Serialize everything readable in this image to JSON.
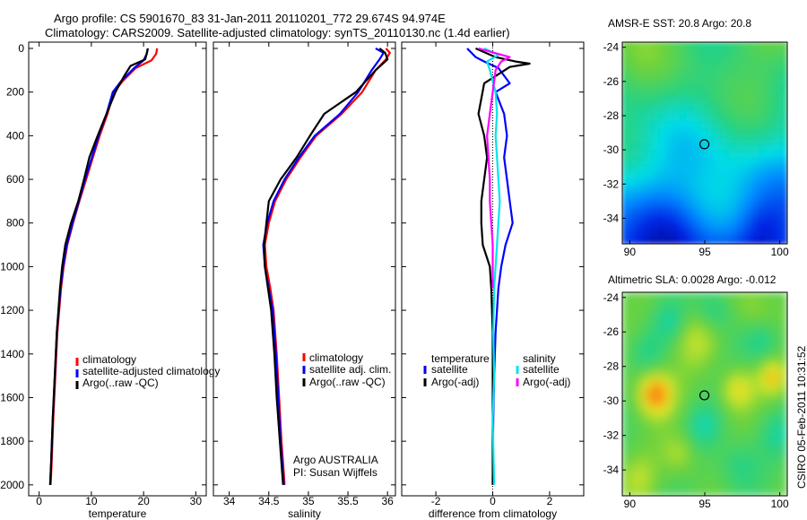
{
  "titles": {
    "line1": "Argo profile: CS 5901670_83 31-Jan-2011 20110201_772 29.674S 94.974E",
    "line2": "Climatology: CARS2009. Satellite-adjusted climatology: synTS_20110130.nc (1.4d earlier)"
  },
  "stamp": "CSIRO 05-Feb-2011 10:31:52",
  "colors": {
    "climatology": "#ff0000",
    "satellite": "#0000ff",
    "argo": "#000000",
    "sal_satellite": "#00e5ee",
    "sal_argo": "#ff00ff"
  },
  "chart_data": [
    {
      "type": "line",
      "panel": "temperature",
      "xlabel": "temperature",
      "ylabel": "",
      "xlim": [
        -2,
        32
      ],
      "ylim": [
        2050,
        0
      ],
      "xticks": [
        "0",
        "10",
        "20",
        "30"
      ],
      "yticks": [
        "0",
        "200",
        "400",
        "600",
        "800",
        "1000",
        "1200",
        "1400",
        "1600",
        "1800",
        "2000"
      ],
      "legend": [
        "climatology",
        "satellite-adjusted climatology",
        "Argo(..raw -QC)"
      ],
      "series": [
        {
          "name": "climatology",
          "color": "#ff0000",
          "x": [
            22.6,
            22.4,
            21.5,
            18.5,
            16,
            14.3,
            13.1,
            11.6,
            10.3,
            9.0,
            7.7,
            6.5,
            5.4,
            4.7,
            4.2,
            3.5,
            3.1,
            2.7,
            2.4,
            2.2
          ],
          "y": [
            0,
            25,
            55,
            90,
            150,
            200,
            300,
            400,
            500,
            600,
            700,
            800,
            900,
            1000,
            1100,
            1300,
            1500,
            1700,
            1900,
            2000
          ]
        },
        {
          "name": "satellite-adjusted climatology",
          "color": "#0000ff",
          "x": [
            20.8,
            20.6,
            20.0,
            18.2,
            15.7,
            14.1,
            12.9,
            11.4,
            10.1,
            8.8,
            7.6,
            6.4,
            5.3,
            4.6,
            4.1,
            3.4,
            3.0,
            2.6,
            2.3,
            2.1
          ],
          "y": [
            0,
            25,
            55,
            90,
            150,
            200,
            300,
            400,
            500,
            600,
            700,
            800,
            900,
            1000,
            1100,
            1300,
            1500,
            1700,
            1900,
            2000
          ]
        },
        {
          "name": "Argo(..raw -QC)",
          "color": "#000000",
          "x": [
            20.8,
            20.7,
            20.3,
            17.5,
            16.2,
            14.6,
            12.9,
            11.2,
            9.6,
            8.6,
            7.5,
            6.1,
            5.0,
            4.4,
            4.0,
            3.4,
            3.0,
            2.6,
            2.3,
            2.1
          ],
          "y": [
            0,
            15,
            50,
            80,
            130,
            200,
            300,
            400,
            500,
            600,
            700,
            800,
            900,
            1000,
            1100,
            1300,
            1500,
            1700,
            1900,
            2000
          ]
        }
      ]
    },
    {
      "type": "line",
      "panel": "salinity",
      "xlabel": "salinity",
      "ylabel": "",
      "xlim": [
        33.8,
        36.1
      ],
      "ylim": [
        2050,
        0
      ],
      "xticks": [
        "34",
        "34.5",
        "35",
        "35.5",
        "36"
      ],
      "legend": [
        "climatology",
        "satellite adj. clim.",
        "Argo(..raw -QC)"
      ],
      "annotation": [
        "Argo AUSTRALIA",
        "PI: Susan Wijffels"
      ],
      "series": [
        {
          "name": "climatology",
          "color": "#ff0000",
          "x": [
            35.98,
            36.03,
            35.98,
            35.85,
            35.68,
            35.42,
            35.1,
            34.9,
            34.72,
            34.58,
            34.5,
            34.45,
            34.47,
            34.52,
            34.56,
            34.6,
            34.63,
            34.66,
            34.69,
            34.7
          ],
          "y": [
            0,
            20,
            50,
            100,
            200,
            300,
            400,
            500,
            600,
            700,
            800,
            900,
            1000,
            1100,
            1200,
            1400,
            1600,
            1800,
            1950,
            2000
          ]
        },
        {
          "name": "satellite adj. clim.",
          "color": "#0000ff",
          "x": [
            35.85,
            35.95,
            35.9,
            35.8,
            35.63,
            35.4,
            35.08,
            34.88,
            34.7,
            34.56,
            34.48,
            34.43,
            34.45,
            34.5,
            34.55,
            34.59,
            34.62,
            34.65,
            34.68,
            34.69
          ],
          "y": [
            0,
            20,
            50,
            100,
            200,
            300,
            400,
            500,
            600,
            700,
            800,
            900,
            1000,
            1100,
            1200,
            1400,
            1600,
            1800,
            1950,
            2000
          ]
        },
        {
          "name": "Argo(..raw -QC)",
          "color": "#000000",
          "x": [
            35.9,
            35.97,
            36.0,
            35.85,
            35.6,
            35.2,
            35.02,
            34.85,
            34.65,
            34.5,
            34.47,
            34.44,
            34.45,
            34.49,
            34.53,
            34.57,
            34.6,
            34.64,
            34.67,
            34.68
          ],
          "y": [
            0,
            20,
            50,
            100,
            200,
            300,
            400,
            500,
            600,
            700,
            800,
            900,
            1000,
            1100,
            1200,
            1400,
            1600,
            1800,
            1950,
            2000
          ]
        }
      ]
    },
    {
      "type": "line",
      "panel": "difference",
      "xlabel": "difference from climatology",
      "ylabel": "",
      "xlim": [
        -3.2,
        3.2
      ],
      "ylim": [
        2050,
        0
      ],
      "xticks": [
        "-2",
        "0",
        "2"
      ],
      "legend_titles": [
        "temperature",
        "salinity"
      ],
      "legend": [
        "satellite",
        "Argo(-adj)",
        "satellite",
        "Argo(-adj)"
      ],
      "series": [
        {
          "name": "temperature satellite",
          "color": "#0000ff",
          "x": [
            -0.9,
            -0.6,
            -0.3,
            0.2,
            0.6,
            0.1,
            0.4,
            0.5,
            0.4,
            0.5,
            0.6,
            0.7,
            0.45,
            0.3,
            0.2,
            0.1,
            0.05,
            0.02,
            0
          ],
          "y": [
            0,
            40,
            60,
            90,
            160,
            200,
            300,
            400,
            500,
            600,
            700,
            800,
            900,
            1000,
            1100,
            1300,
            1500,
            1700,
            2000
          ]
        },
        {
          "name": "temperature Argo(-adj)",
          "color": "#000000",
          "x": [
            -0.6,
            0.1,
            0.8,
            1.3,
            0.6,
            -0.3,
            -0.5,
            -0.3,
            -0.2,
            -0.3,
            -0.4,
            -0.4,
            -0.35,
            -0.1,
            -0.05,
            0,
            0,
            0
          ],
          "y": [
            0,
            40,
            60,
            70,
            85,
            160,
            300,
            400,
            500,
            600,
            700,
            800,
            900,
            1000,
            1100,
            1300,
            1600,
            2000
          ]
        },
        {
          "name": "salinity satellite",
          "color": "#00e5ee",
          "x": [
            -0.3,
            0.2,
            -0.2,
            -0.1,
            0.1,
            0.15,
            0.1,
            0.15,
            0.2,
            0.25,
            0.2,
            0.15,
            0.1,
            0.05,
            0.02,
            0.05,
            0,
            0.05
          ],
          "y": [
            0,
            30,
            60,
            100,
            200,
            300,
            400,
            500,
            600,
            700,
            800,
            900,
            1000,
            1100,
            1300,
            1500,
            1700,
            2000
          ]
        },
        {
          "name": "salinity Argo(-adj)",
          "color": "#ff00ff",
          "x": [
            -0.5,
            0.6,
            0.3,
            0.1,
            0.0,
            -0.1,
            -0.2,
            -0.15,
            -0.1,
            -0.1,
            -0.05,
            0,
            0,
            0
          ],
          "y": [
            0,
            40,
            60,
            100,
            200,
            300,
            400,
            500,
            600,
            700,
            800,
            900,
            1000,
            1100
          ]
        }
      ]
    },
    {
      "type": "heatmap",
      "panel": "amsre-sst",
      "title": "AMSR-E SST: 20.8 Argo: 20.8",
      "xlim": [
        89.5,
        100.5
      ],
      "ylim": [
        -35.5,
        -23.7
      ],
      "xticks": [
        "90",
        "95",
        "100"
      ],
      "yticks": [
        "-24",
        "-26",
        "-28",
        "-30",
        "-32",
        "-34"
      ],
      "marker": {
        "lon": 94.974,
        "lat": -29.674
      }
    },
    {
      "type": "heatmap",
      "panel": "altimetric-sla",
      "title": "Altimetric SLA: 0.0028 Argo: -0.012",
      "xlim": [
        89.5,
        100.5
      ],
      "ylim": [
        -35.5,
        -23.7
      ],
      "xticks": [
        "90",
        "95",
        "100"
      ],
      "yticks": [
        "-24",
        "-26",
        "-28",
        "-30",
        "-32",
        "-34"
      ],
      "marker": {
        "lon": 94.974,
        "lat": -29.674
      }
    }
  ]
}
